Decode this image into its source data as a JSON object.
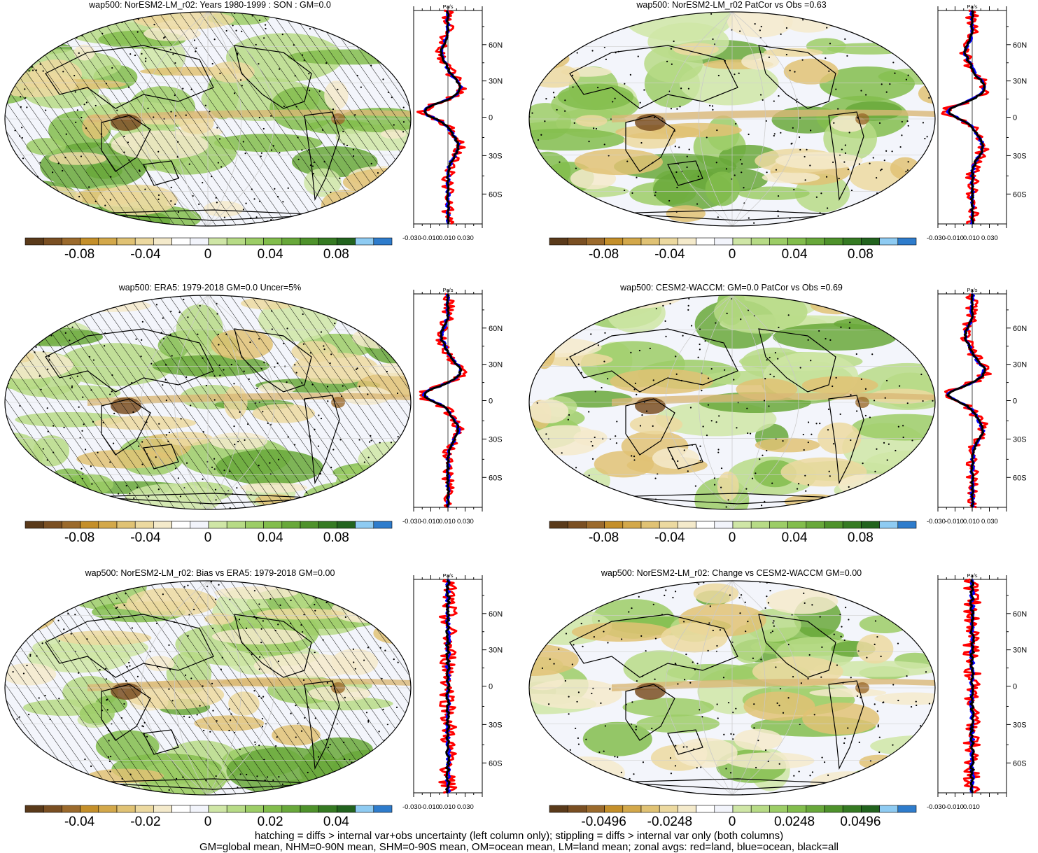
{
  "chart_data": [
    {
      "type": "heatmap",
      "title": "wap500: NorESM2-LM_r02: Years 1980-1999 : SON : GM=0.0",
      "colorbar_ticks": [
        "-0.08",
        "-0.04",
        "0",
        "0.04",
        "0.08"
      ],
      "profile": {
        "unit": "Pa/s",
        "yticks": [
          "60N",
          "30N",
          "0",
          "30S",
          "60S"
        ],
        "xticks": [
          "-0.030",
          "-0.010",
          "0.010",
          "0.030"
        ]
      }
    },
    {
      "type": "heatmap",
      "title": "wap500: NorESM2-LM_r02 PatCor vs Obs =0.63",
      "colorbar_ticks": [
        "-0.08",
        "-0.04",
        "0",
        "0.04",
        "0.08"
      ],
      "profile": {
        "unit": "Pa/s",
        "yticks": [
          "60N",
          "30N",
          "0",
          "30S",
          "60S"
        ],
        "xticks": [
          "-0.030",
          "-0.010",
          "0.010",
          "0.030"
        ]
      }
    },
    {
      "type": "heatmap",
      "title": "wap500: ERA5: 1979-2018 GM=0.0 Uncer=5%",
      "colorbar_ticks": [
        "-0.08",
        "-0.04",
        "0",
        "0.04",
        "0.08"
      ],
      "profile": {
        "unit": "Pa/s",
        "yticks": [
          "60N",
          "30N",
          "0",
          "30S",
          "60S"
        ],
        "xticks": [
          "-0.030",
          "-0.010",
          "0.010",
          "0.030"
        ]
      }
    },
    {
      "type": "heatmap",
      "title": "wap500: CESM2-WACCM: GM=0.0 PatCor vs Obs =0.69",
      "colorbar_ticks": [
        "-0.08",
        "-0.04",
        "0",
        "0.04",
        "0.08"
      ],
      "profile": {
        "unit": "Pa/s",
        "yticks": [
          "60N",
          "30N",
          "0",
          "30S",
          "60S"
        ],
        "xticks": [
          "-0.030",
          "-0.010",
          "0.010",
          "0.030"
        ]
      }
    },
    {
      "type": "heatmap",
      "title": "wap500: NorESM2-LM_r02: Bias vs ERA5: 1979-2018  GM=0.00",
      "colorbar_ticks": [
        "-0.04",
        "-0.02",
        "0",
        "0.02",
        "0.04"
      ],
      "profile": {
        "unit": "Pa/s",
        "yticks": [
          "60N",
          "30N",
          "0",
          "30S",
          "60S"
        ],
        "xticks": [
          "-0.030",
          "-0.010",
          "0.010",
          "0.030"
        ]
      }
    },
    {
      "type": "heatmap",
      "title": "wap500: NorESM2-LM_r02: Change vs CESM2-WACCM GM=0.00",
      "colorbar_ticks": [
        "-0.0496",
        "-0.0248",
        "0",
        "0.0248",
        "0.0496"
      ],
      "profile": {
        "unit": "Pa/s",
        "yticks": [
          "60N",
          "30N",
          "0",
          "30S",
          "60S"
        ],
        "xticks": [
          "-0.030",
          "-0.010",
          "0.010"
        ]
      }
    }
  ],
  "colors": {
    "palette": [
      "#5a3a1a",
      "#7a4f22",
      "#9b6a2c",
      "#c48f2a",
      "#d3a84a",
      "#e0c274",
      "#ecd9a0",
      "#f4eacb",
      "#ffffff",
      "#f2f4fb",
      "#cfe6a6",
      "#b7db86",
      "#9ccd66",
      "#82bd4c",
      "#68a83a",
      "#4e922b",
      "#357a22",
      "#22631e",
      "#8ecbf2",
      "#2e7ccc"
    ],
    "land": "#ff0000",
    "ocean": "#0000ff",
    "all": "#000000"
  },
  "footer": {
    "line1": "hatching = diffs > internal var+obs uncertainty (left column only); stippling = diffs > internal var only (both columns)",
    "line2": "GM=global mean, NHM=0-90N mean, SHM=0-90S mean, OM=ocean mean, LM=land mean; zonal avgs: red=land, blue=ocean, black=all"
  }
}
